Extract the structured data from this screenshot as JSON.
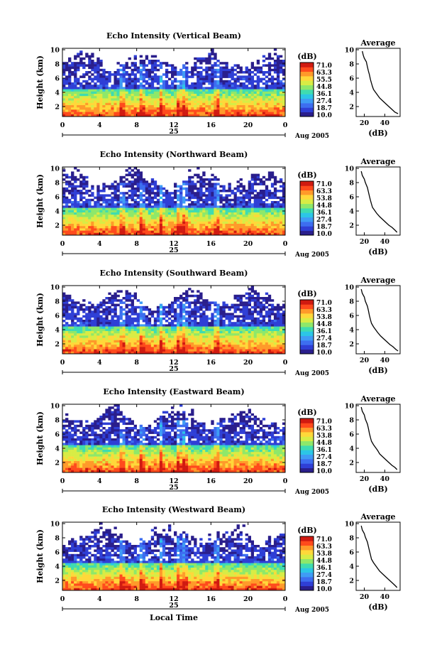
{
  "colors": {
    "colormap": [
      "#2a1e8c",
      "#2f3fd6",
      "#3d6ef0",
      "#3f9cf5",
      "#2cc6e6",
      "#3fdcb0",
      "#8ee86a",
      "#d8ec45",
      "#ffd83a",
      "#ff9a2a",
      "#ff4a1c",
      "#d01a10"
    ]
  },
  "chart_data": [
    {
      "type": "heatmap",
      "title": "Echo Intensity (Vertical Beam)",
      "ylabel": "Height (km)",
      "xlabel": "",
      "x_ticks": [
        "0",
        "4",
        "8",
        "12",
        "16",
        "20",
        "0"
      ],
      "y_ticks": [
        "2",
        "4",
        "6",
        "8",
        "10"
      ],
      "xlim": [
        0,
        24
      ],
      "ylim": [
        0.6,
        10.2
      ],
      "date_label": "25",
      "month_label": "Aug 2005",
      "colorbar": {
        "label": "(dB)",
        "ticks": [
          "71.0",
          "63.3",
          "55.5",
          "44.8",
          "36.1",
          "27.4",
          "18.7",
          "10.0"
        ],
        "range": [
          10.0,
          71.0
        ]
      },
      "average_profile": {
        "title": "Average",
        "xlabel": "(dB)",
        "x_ticks": [
          "20",
          "40"
        ],
        "y_ticks": [
          "2",
          "4",
          "6",
          "8",
          "10"
        ],
        "xlim": [
          12,
          55
        ],
        "points": [
          [
            18,
            9.8
          ],
          [
            19,
            9.2
          ],
          [
            20,
            8.8
          ],
          [
            22,
            8.3
          ],
          [
            23,
            7.6
          ],
          [
            24,
            7.0
          ],
          [
            25,
            6.5
          ],
          [
            26,
            5.8
          ],
          [
            27,
            5.3
          ],
          [
            28,
            4.8
          ],
          [
            29,
            4.4
          ],
          [
            31,
            4.0
          ],
          [
            33,
            3.6
          ],
          [
            35,
            3.2
          ],
          [
            38,
            2.8
          ],
          [
            41,
            2.4
          ],
          [
            44,
            2.0
          ],
          [
            47,
            1.6
          ],
          [
            50,
            1.2
          ],
          [
            53,
            1.0
          ]
        ]
      }
    },
    {
      "type": "heatmap",
      "title": "Echo Intensity (Northward Beam)",
      "ylabel": "Height (km)",
      "xlabel": "",
      "x_ticks": [
        "0",
        "4",
        "8",
        "12",
        "16",
        "20",
        "0"
      ],
      "y_ticks": [
        "2",
        "4",
        "6",
        "8",
        "10"
      ],
      "xlim": [
        0,
        24
      ],
      "ylim": [
        0.6,
        10.2
      ],
      "date_label": "25",
      "month_label": "Aug 2005",
      "colorbar": {
        "label": "(dB)",
        "ticks": [
          "71.0",
          "63.3",
          "53.8",
          "44.8",
          "36.1",
          "27.4",
          "18.7",
          "10.0"
        ],
        "range": [
          10.0,
          71.0
        ]
      },
      "average_profile": {
        "title": "Average",
        "xlabel": "(dB)",
        "x_ticks": [
          "20",
          "40"
        ],
        "y_ticks": [
          "2",
          "4",
          "6",
          "8",
          "10"
        ],
        "xlim": [
          12,
          55
        ],
        "points": [
          [
            17,
            9.6
          ],
          [
            18,
            9.0
          ],
          [
            20,
            8.5
          ],
          [
            21,
            8.0
          ],
          [
            23,
            7.3
          ],
          [
            24,
            6.7
          ],
          [
            25,
            6.1
          ],
          [
            26,
            5.5
          ],
          [
            27,
            5.0
          ],
          [
            28,
            4.5
          ],
          [
            30,
            4.1
          ],
          [
            32,
            3.7
          ],
          [
            35,
            3.2
          ],
          [
            38,
            2.8
          ],
          [
            41,
            2.4
          ],
          [
            44,
            2.0
          ],
          [
            47,
            1.7
          ],
          [
            50,
            1.3
          ],
          [
            52,
            1.0
          ]
        ]
      }
    },
    {
      "type": "heatmap",
      "title": "Echo Intensity (Southward Beam)",
      "ylabel": "Height (km)",
      "xlabel": "",
      "x_ticks": [
        "0",
        "4",
        "8",
        "12",
        "16",
        "20",
        "0"
      ],
      "y_ticks": [
        "2",
        "4",
        "6",
        "8",
        "10"
      ],
      "xlim": [
        0,
        24
      ],
      "ylim": [
        0.6,
        10.2
      ],
      "date_label": "25",
      "month_label": "Aug 2005",
      "colorbar": {
        "label": "(dB)",
        "ticks": [
          "71.0",
          "63.3",
          "53.8",
          "44.8",
          "36.1",
          "27.4",
          "18.7",
          "10.0"
        ],
        "range": [
          10.0,
          71.0
        ]
      },
      "average_profile": {
        "title": "Average",
        "xlabel": "(dB)",
        "x_ticks": [
          "20",
          "40"
        ],
        "y_ticks": [
          "2",
          "4",
          "6",
          "8",
          "10"
        ],
        "xlim": [
          12,
          55
        ],
        "points": [
          [
            17,
            9.7
          ],
          [
            18,
            9.1
          ],
          [
            20,
            8.6
          ],
          [
            21,
            8.0
          ],
          [
            23,
            7.3
          ],
          [
            24,
            6.7
          ],
          [
            25,
            6.0
          ],
          [
            26,
            5.4
          ],
          [
            27,
            4.9
          ],
          [
            29,
            4.4
          ],
          [
            31,
            4.0
          ],
          [
            33,
            3.6
          ],
          [
            36,
            3.1
          ],
          [
            39,
            2.7
          ],
          [
            42,
            2.3
          ],
          [
            45,
            1.9
          ],
          [
            48,
            1.6
          ],
          [
            51,
            1.2
          ],
          [
            53,
            1.0
          ]
        ]
      }
    },
    {
      "type": "heatmap",
      "title": "Echo Intensity (Eastward Beam)",
      "ylabel": "Height (km)",
      "xlabel": "",
      "x_ticks": [
        "0",
        "4",
        "8",
        "12",
        "16",
        "20",
        "0"
      ],
      "y_ticks": [
        "2",
        "4",
        "6",
        "8",
        "10"
      ],
      "xlim": [
        0,
        24
      ],
      "ylim": [
        0.6,
        10.2
      ],
      "date_label": "25",
      "month_label": "Aug 2005",
      "colorbar": {
        "label": "(dB)",
        "ticks": [
          "71.0",
          "63.3",
          "53.8",
          "44.8",
          "36.1",
          "27.4",
          "18.7",
          "10.0"
        ],
        "range": [
          10.0,
          71.0
        ]
      },
      "average_profile": {
        "title": "Average",
        "xlabel": "(dB)",
        "x_ticks": [
          "20",
          "40"
        ],
        "y_ticks": [
          "2",
          "4",
          "6",
          "8",
          "10"
        ],
        "xlim": [
          12,
          55
        ],
        "points": [
          [
            17,
            9.8
          ],
          [
            18,
            9.2
          ],
          [
            20,
            8.7
          ],
          [
            21,
            8.1
          ],
          [
            23,
            7.4
          ],
          [
            24,
            6.8
          ],
          [
            25,
            6.1
          ],
          [
            26,
            5.5
          ],
          [
            27,
            5.0
          ],
          [
            29,
            4.5
          ],
          [
            31,
            4.1
          ],
          [
            33,
            3.7
          ],
          [
            35,
            3.2
          ],
          [
            38,
            2.8
          ],
          [
            41,
            2.4
          ],
          [
            44,
            2.0
          ],
          [
            47,
            1.6
          ],
          [
            50,
            1.3
          ],
          [
            52,
            1.0
          ]
        ]
      }
    },
    {
      "type": "heatmap",
      "title": "Echo Intensity (Westward Beam)",
      "ylabel": "Height (km)",
      "xlabel": "Local Time",
      "x_ticks": [
        "0",
        "4",
        "8",
        "12",
        "16",
        "20",
        "0"
      ],
      "y_ticks": [
        "2",
        "4",
        "6",
        "8",
        "10"
      ],
      "xlim": [
        0,
        24
      ],
      "ylim": [
        0.6,
        10.2
      ],
      "date_label": "25",
      "month_label": "Aug 2005",
      "colorbar": {
        "label": "(dB)",
        "ticks": [
          "71.0",
          "63.3",
          "53.8",
          "44.8",
          "36.1",
          "27.4",
          "18.7",
          "10.0"
        ],
        "range": [
          10.0,
          71.0
        ]
      },
      "average_profile": {
        "title": "Average",
        "xlabel": "(dB)",
        "x_ticks": [
          "20",
          "40"
        ],
        "y_ticks": [
          "2",
          "4",
          "6",
          "8",
          "10"
        ],
        "xlim": [
          12,
          55
        ],
        "points": [
          [
            17,
            9.7
          ],
          [
            18,
            9.1
          ],
          [
            20,
            8.6
          ],
          [
            21,
            8.1
          ],
          [
            23,
            7.4
          ],
          [
            24,
            6.8
          ],
          [
            25,
            6.2
          ],
          [
            26,
            5.6
          ],
          [
            27,
            5.0
          ],
          [
            29,
            4.5
          ],
          [
            31,
            4.1
          ],
          [
            33,
            3.7
          ],
          [
            35,
            3.3
          ],
          [
            38,
            2.9
          ],
          [
            41,
            2.5
          ],
          [
            44,
            2.1
          ],
          [
            47,
            1.7
          ],
          [
            50,
            1.3
          ],
          [
            52,
            1.0
          ]
        ]
      }
    }
  ]
}
